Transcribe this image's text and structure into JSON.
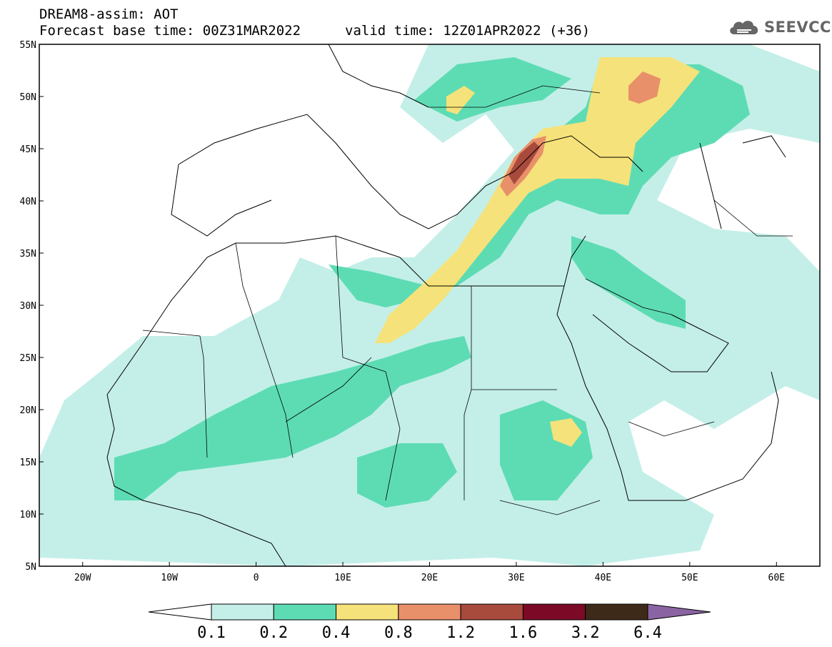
{
  "title": {
    "line1": "DREAM8-assim: AOT",
    "line2": "Forecast base time: 00Z31MAR2022",
    "line3": "valid time: 12Z01APR2022 (+36)"
  },
  "logo": {
    "text": "SEEVCCC",
    "icon": "cloud-icon"
  },
  "map": {
    "lon_range": [
      -25,
      65
    ],
    "lat_range": [
      5,
      55
    ],
    "lat_labels": [
      "55N",
      "50N",
      "45N",
      "40N",
      "35N",
      "30N",
      "25N",
      "20N",
      "15N",
      "10N",
      "5N"
    ],
    "lon_labels": [
      "20W",
      "10W",
      "0",
      "10E",
      "20E",
      "30E",
      "40E",
      "50E",
      "60E"
    ]
  },
  "colorbar": {
    "labels": [
      "0.1",
      "0.2",
      "0.4",
      "0.8",
      "1.2",
      "1.6",
      "3.2",
      "6.4"
    ],
    "colors": [
      "#c4efe8",
      "#5ddcb4",
      "#f6e27a",
      "#e8906a",
      "#a84a3c",
      "#7c0a26",
      "#3e2a18",
      "#8a64a2"
    ]
  }
}
